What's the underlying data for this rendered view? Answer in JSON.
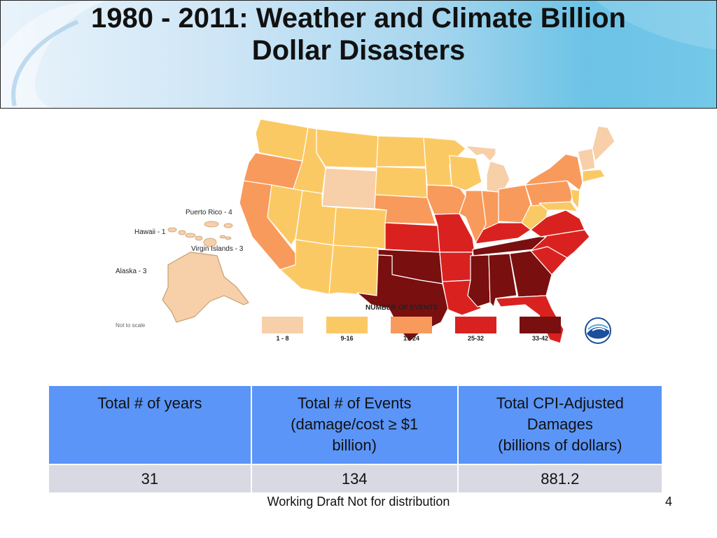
{
  "slide": {
    "title_line1": "1980 - 2011:  Weather and Climate Billion",
    "title_line2": "Dollar Disasters"
  },
  "map": {
    "territories": [
      {
        "id": "puerto_rico",
        "label": "Puerto Rico - 4"
      },
      {
        "id": "hawaii",
        "label": "Hawaii - 1"
      },
      {
        "id": "virgin_islands",
        "label": "Virgin Islands - 3"
      },
      {
        "id": "alaska",
        "label": "Alaska - 3"
      }
    ],
    "not_to_scale": "Not to scale",
    "legend": {
      "title": "NUMBER OF EVENTS",
      "classes": [
        {
          "label": "1 - 8",
          "color": "#f7cfa8"
        },
        {
          "label": "9-16",
          "color": "#fbc964"
        },
        {
          "label": "17-24",
          "color": "#f89a5c"
        },
        {
          "label": "25-32",
          "color": "#d9221f"
        },
        {
          "label": "33-42",
          "color": "#7a0f0f"
        }
      ]
    }
  },
  "table": {
    "headers": [
      "Total # of years",
      "Total # of Events (damage/cost ≥ $1 billion)",
      "Total CPI-Adjusted Damages (billions of dollars)"
    ],
    "header_lines": [
      [
        "Total # of years"
      ],
      [
        "Total # of Events",
        "(damage/cost ≥ $1",
        "billion)"
      ],
      [
        "Total CPI-Adjusted",
        "Damages",
        "(billions of dollars)"
      ]
    ],
    "values": [
      "31",
      "134",
      "881.2"
    ]
  },
  "footer": {
    "text": "Working Draft Not for distribution",
    "page_number": "4"
  }
}
